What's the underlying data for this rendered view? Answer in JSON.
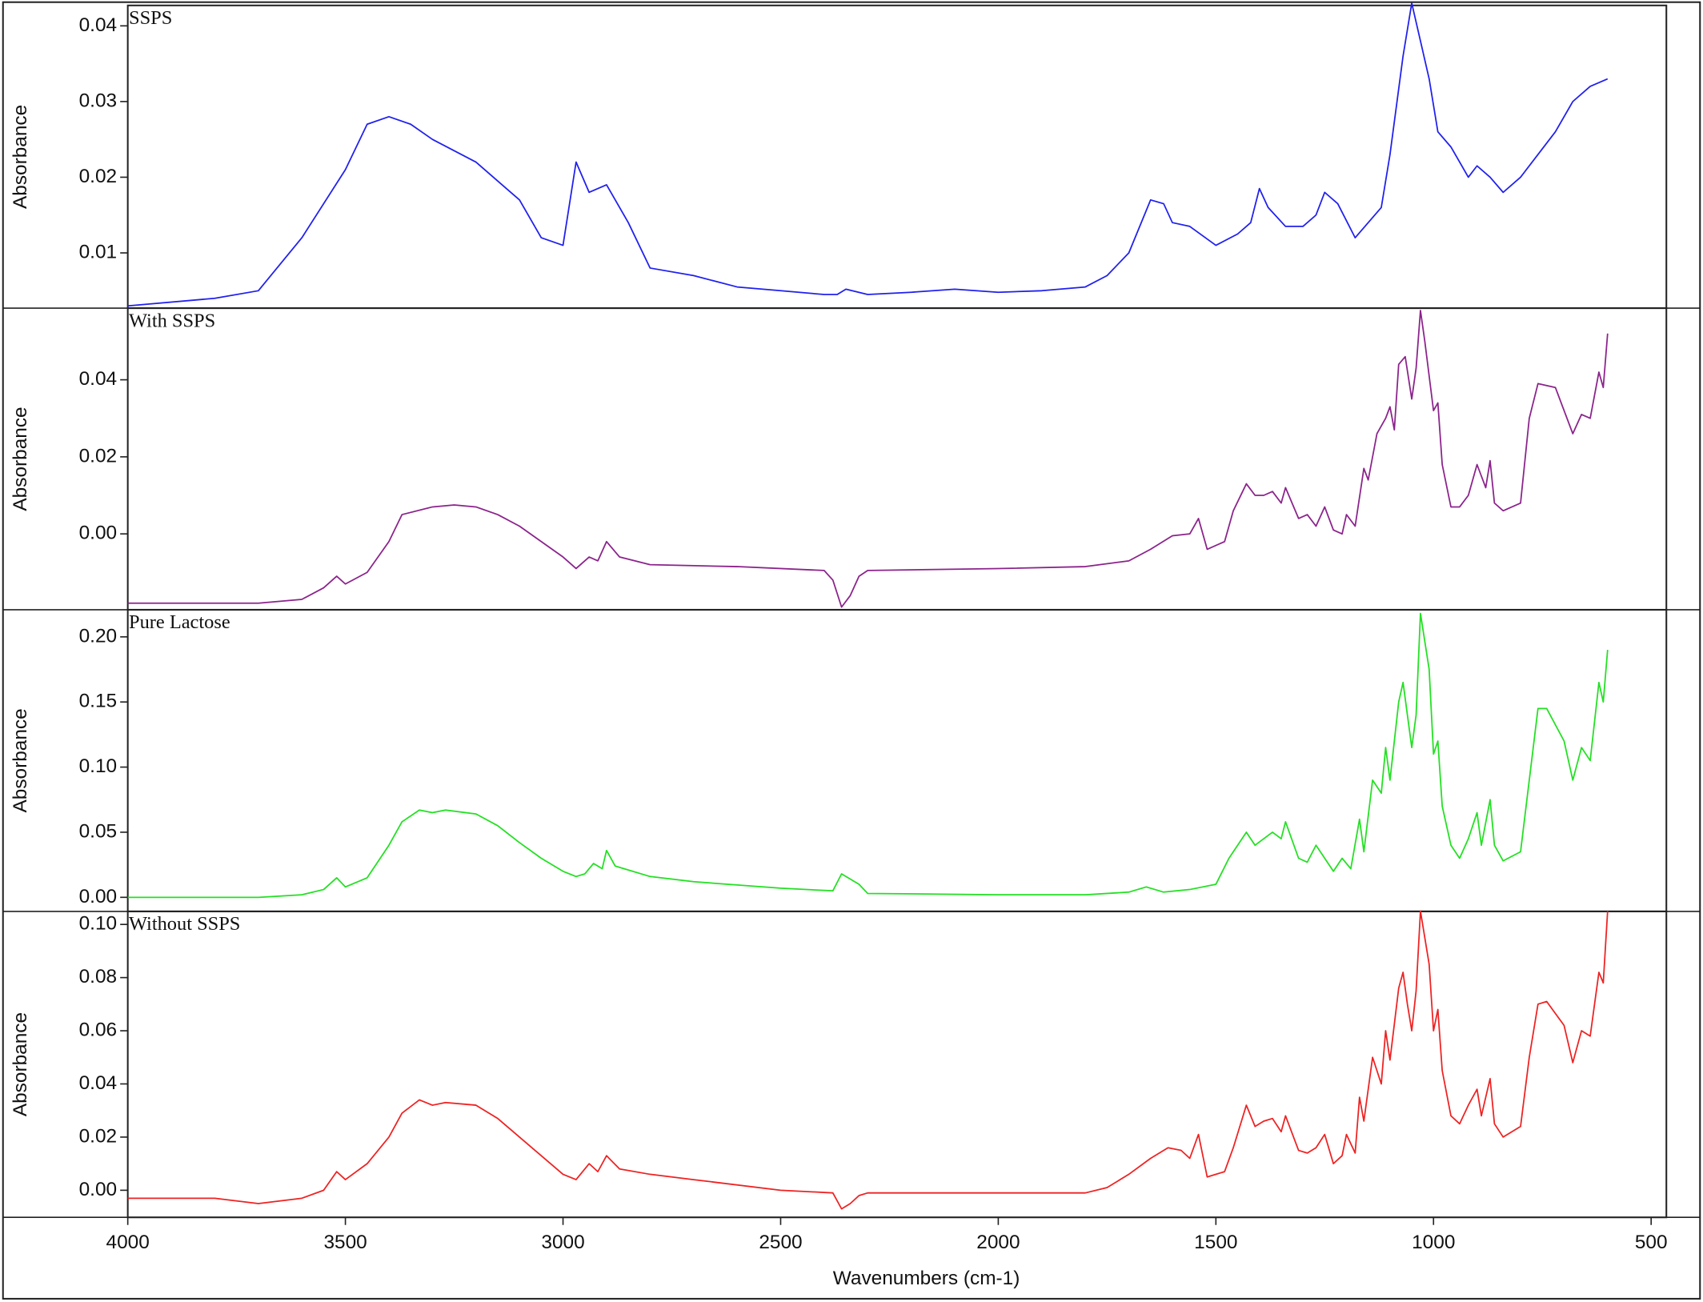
{
  "chart_data": [
    {
      "type": "line",
      "title": "SSPS",
      "ylabel": "Absorbance",
      "color": "#2020ee",
      "xlim": [
        4000,
        465
      ],
      "ylim": [
        0.0027,
        0.0427
      ],
      "yticks": [
        0.01,
        0.02,
        0.03,
        0.04
      ],
      "x": [
        4000,
        3800,
        3700,
        3600,
        3500,
        3450,
        3400,
        3350,
        3300,
        3200,
        3100,
        3050,
        3000,
        2970,
        2940,
        2900,
        2850,
        2800,
        2700,
        2600,
        2500,
        2400,
        2370,
        2350,
        2300,
        2200,
        2100,
        2000,
        1900,
        1800,
        1750,
        1700,
        1650,
        1620,
        1600,
        1560,
        1500,
        1450,
        1420,
        1400,
        1380,
        1340,
        1300,
        1270,
        1250,
        1220,
        1180,
        1150,
        1120,
        1100,
        1070,
        1050,
        1030,
        1010,
        990,
        960,
        920,
        900,
        870,
        840,
        800,
        760,
        720,
        680,
        640,
        600
      ],
      "values": [
        0.003,
        0.004,
        0.005,
        0.012,
        0.021,
        0.027,
        0.028,
        0.027,
        0.025,
        0.022,
        0.017,
        0.012,
        0.011,
        0.022,
        0.018,
        0.019,
        0.014,
        0.008,
        0.007,
        0.0055,
        0.005,
        0.0045,
        0.0045,
        0.0052,
        0.0045,
        0.0048,
        0.0052,
        0.0048,
        0.005,
        0.0055,
        0.007,
        0.01,
        0.017,
        0.0165,
        0.014,
        0.0135,
        0.011,
        0.0125,
        0.014,
        0.0185,
        0.016,
        0.0135,
        0.0135,
        0.015,
        0.018,
        0.0165,
        0.012,
        0.014,
        0.016,
        0.023,
        0.036,
        0.043,
        0.038,
        0.033,
        0.026,
        0.024,
        0.02,
        0.0215,
        0.02,
        0.018,
        0.02,
        0.023,
        0.026,
        0.03,
        0.032,
        0.033
      ]
    },
    {
      "type": "line",
      "title": "With SSPS",
      "ylabel": "Absorbance",
      "color": "#8b238b",
      "xlim": [
        4000,
        465
      ],
      "ylim": [
        -0.0197,
        0.0586
      ],
      "yticks": [
        {
          "value": 0,
          "label": "0.00"
        },
        0.02,
        0.04
      ],
      "x": [
        4000,
        3700,
        3600,
        3550,
        3520,
        3500,
        3450,
        3400,
        3370,
        3300,
        3250,
        3200,
        3150,
        3100,
        3050,
        3000,
        2970,
        2940,
        2920,
        2900,
        2870,
        2800,
        2600,
        2400,
        2380,
        2360,
        2340,
        2320,
        2300,
        2000,
        1800,
        1700,
        1650,
        1600,
        1560,
        1540,
        1520,
        1480,
        1460,
        1430,
        1410,
        1390,
        1370,
        1350,
        1340,
        1310,
        1290,
        1270,
        1250,
        1230,
        1210,
        1200,
        1180,
        1160,
        1150,
        1130,
        1110,
        1100,
        1090,
        1080,
        1065,
        1050,
        1040,
        1030,
        1020,
        1000,
        990,
        980,
        960,
        940,
        920,
        900,
        880,
        870,
        860,
        840,
        800,
        780,
        760,
        720,
        700,
        680,
        660,
        640,
        620,
        610,
        600
      ],
      "values": [
        -0.018,
        -0.018,
        -0.017,
        -0.014,
        -0.011,
        -0.013,
        -0.01,
        -0.002,
        0.005,
        0.007,
        0.0075,
        0.007,
        0.005,
        0.002,
        -0.002,
        -0.006,
        -0.009,
        -0.006,
        -0.007,
        -0.002,
        -0.006,
        -0.008,
        -0.0085,
        -0.0095,
        -0.012,
        -0.019,
        -0.016,
        -0.011,
        -0.0095,
        -0.009,
        -0.0085,
        -0.007,
        -0.004,
        -0.0005,
        0.0,
        0.004,
        -0.004,
        -0.002,
        0.006,
        0.013,
        0.01,
        0.01,
        0.011,
        0.008,
        0.012,
        0.004,
        0.005,
        0.002,
        0.007,
        0.001,
        0.0,
        0.005,
        0.002,
        0.017,
        0.014,
        0.026,
        0.03,
        0.033,
        0.027,
        0.044,
        0.046,
        0.035,
        0.043,
        0.058,
        0.05,
        0.032,
        0.034,
        0.018,
        0.007,
        0.007,
        0.01,
        0.018,
        0.012,
        0.019,
        0.008,
        0.006,
        0.008,
        0.03,
        0.039,
        0.038,
        0.032,
        0.026,
        0.031,
        0.03,
        0.042,
        0.038,
        0.052
      ]
    },
    {
      "type": "line",
      "title": "Pure Lactose",
      "ylabel": "Absorbance",
      "color": "#22e022",
      "xlim": [
        4000,
        465
      ],
      "ylim": [
        -0.0108,
        0.2208
      ],
      "yticks": [
        {
          "value": 0,
          "label": "0.00"
        },
        0.05,
        {
          "value": 0.1,
          "label": "0.10"
        },
        0.15,
        {
          "value": 0.2,
          "label": "0.20"
        }
      ],
      "x": [
        4000,
        3700,
        3600,
        3550,
        3520,
        3500,
        3450,
        3400,
        3370,
        3330,
        3300,
        3270,
        3200,
        3150,
        3100,
        3050,
        3000,
        2970,
        2950,
        2930,
        2910,
        2900,
        2880,
        2800,
        2700,
        2500,
        2380,
        2360,
        2340,
        2320,
        2300,
        2000,
        1800,
        1700,
        1660,
        1620,
        1560,
        1500,
        1470,
        1430,
        1410,
        1390,
        1370,
        1350,
        1340,
        1310,
        1290,
        1270,
        1250,
        1230,
        1210,
        1190,
        1170,
        1160,
        1140,
        1120,
        1110,
        1100,
        1080,
        1070,
        1060,
        1050,
        1040,
        1030,
        1010,
        1000,
        990,
        980,
        960,
        940,
        920,
        900,
        890,
        870,
        860,
        840,
        800,
        780,
        760,
        740,
        700,
        680,
        660,
        640,
        620,
        610,
        600
      ],
      "values": [
        0.0,
        0.0,
        0.002,
        0.006,
        0.015,
        0.008,
        0.015,
        0.04,
        0.058,
        0.067,
        0.065,
        0.067,
        0.064,
        0.055,
        0.042,
        0.03,
        0.02,
        0.016,
        0.018,
        0.026,
        0.022,
        0.036,
        0.024,
        0.016,
        0.012,
        0.007,
        0.005,
        0.018,
        0.014,
        0.01,
        0.003,
        0.002,
        0.002,
        0.004,
        0.008,
        0.004,
        0.006,
        0.01,
        0.03,
        0.05,
        0.04,
        0.045,
        0.05,
        0.045,
        0.058,
        0.03,
        0.027,
        0.04,
        0.03,
        0.02,
        0.03,
        0.022,
        0.06,
        0.035,
        0.09,
        0.08,
        0.115,
        0.09,
        0.15,
        0.165,
        0.14,
        0.115,
        0.14,
        0.218,
        0.175,
        0.11,
        0.12,
        0.07,
        0.04,
        0.03,
        0.045,
        0.065,
        0.04,
        0.075,
        0.04,
        0.028,
        0.035,
        0.09,
        0.145,
        0.145,
        0.12,
        0.09,
        0.115,
        0.105,
        0.165,
        0.15,
        0.19
      ]
    },
    {
      "type": "line",
      "title": "Without SSPS",
      "ylabel": "Absorbance",
      "color": "#ee2222",
      "xlabel": "Wavenumbers (cm-1)",
      "xlim": [
        4000,
        465
      ],
      "xticks": [
        4000,
        3500,
        3000,
        2500,
        2000,
        1500,
        1000,
        500
      ],
      "ylim": [
        -0.0102,
        0.1049
      ],
      "yticks": [
        {
          "value": 0,
          "label": "0.00"
        },
        0.02,
        0.04,
        0.06,
        0.08,
        {
          "value": 0.1,
          "label": "0.10"
        }
      ],
      "x": [
        4000,
        3800,
        3700,
        3600,
        3550,
        3520,
        3500,
        3450,
        3400,
        3370,
        3330,
        3300,
        3270,
        3200,
        3150,
        3100,
        3050,
        3000,
        2970,
        2940,
        2920,
        2900,
        2870,
        2800,
        2700,
        2500,
        2380,
        2360,
        2340,
        2320,
        2300,
        2000,
        1800,
        1750,
        1700,
        1650,
        1610,
        1580,
        1560,
        1540,
        1520,
        1480,
        1460,
        1430,
        1410,
        1390,
        1370,
        1350,
        1340,
        1310,
        1290,
        1270,
        1250,
        1230,
        1210,
        1200,
        1180,
        1170,
        1160,
        1140,
        1120,
        1110,
        1100,
        1080,
        1070,
        1060,
        1050,
        1040,
        1030,
        1010,
        1000,
        990,
        980,
        960,
        940,
        920,
        900,
        890,
        870,
        860,
        840,
        800,
        780,
        760,
        740,
        700,
        680,
        660,
        640,
        620,
        610,
        600
      ],
      "values": [
        -0.003,
        -0.003,
        -0.005,
        -0.003,
        0.0,
        0.007,
        0.004,
        0.01,
        0.02,
        0.029,
        0.034,
        0.032,
        0.033,
        0.032,
        0.027,
        0.02,
        0.013,
        0.006,
        0.004,
        0.01,
        0.007,
        0.013,
        0.008,
        0.006,
        0.004,
        0.0,
        -0.001,
        -0.007,
        -0.005,
        -0.002,
        -0.001,
        -0.001,
        -0.001,
        0.001,
        0.006,
        0.012,
        0.016,
        0.015,
        0.012,
        0.021,
        0.005,
        0.007,
        0.016,
        0.032,
        0.024,
        0.026,
        0.027,
        0.022,
        0.028,
        0.015,
        0.014,
        0.016,
        0.021,
        0.01,
        0.013,
        0.021,
        0.014,
        0.035,
        0.026,
        0.05,
        0.04,
        0.06,
        0.049,
        0.076,
        0.082,
        0.07,
        0.06,
        0.075,
        0.105,
        0.085,
        0.06,
        0.068,
        0.045,
        0.028,
        0.025,
        0.032,
        0.038,
        0.028,
        0.042,
        0.025,
        0.02,
        0.024,
        0.05,
        0.07,
        0.071,
        0.062,
        0.048,
        0.06,
        0.058,
        0.082,
        0.078,
        0.105
      ]
    }
  ]
}
